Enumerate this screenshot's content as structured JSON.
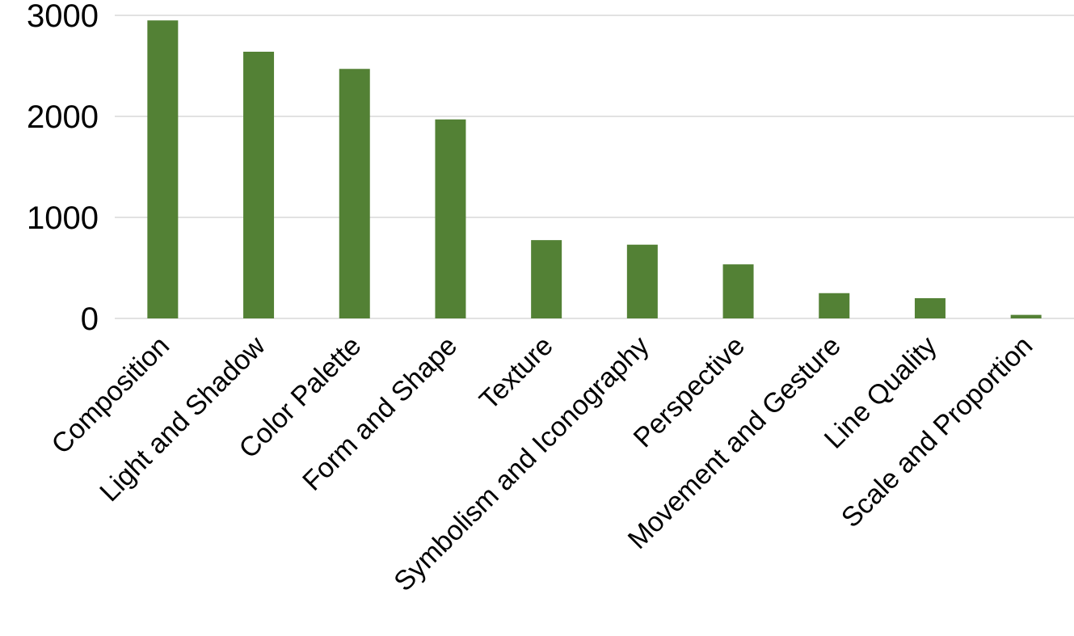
{
  "chart_data": {
    "type": "bar",
    "title": "",
    "xlabel": "",
    "ylabel": "",
    "categories": [
      "Composition",
      "Light and Shadow",
      "Color Palette",
      "Form and Shape",
      "Texture",
      "Symbolism and Iconography",
      "Perspective",
      "Movement and Gesture",
      "Line Quality",
      "Scale and Proportion"
    ],
    "values": [
      2950,
      2640,
      2470,
      1970,
      775,
      730,
      535,
      250,
      200,
      35
    ],
    "ylim": [
      0,
      3000
    ],
    "yticks": [
      "0",
      "1000",
      "2000",
      "3000"
    ],
    "grid": true,
    "legend": "none",
    "colors": {
      "bar": "#538135"
    }
  }
}
